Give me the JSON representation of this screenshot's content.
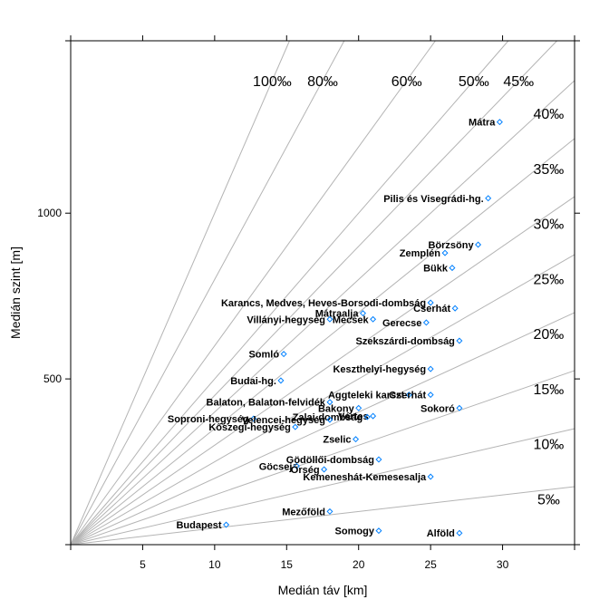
{
  "chart_data": {
    "type": "scatter",
    "xlabel": "Medián táv [km]",
    "ylabel": "Medián szint [m]",
    "xlim": [
      0,
      35
    ],
    "ylim": [
      0,
      1520
    ],
    "x_ticks": [
      "5",
      "10",
      "15",
      "20",
      "25",
      "30"
    ],
    "x_tick_values": [
      5,
      10,
      15,
      20,
      25,
      30
    ],
    "y_ticks": [
      "500",
      "1000"
    ],
    "y_tick_values": [
      500,
      1000
    ],
    "grid": false,
    "slope_lines": [
      {
        "label": "100‰",
        "permille": 100
      },
      {
        "label": "80‰",
        "permille": 80
      },
      {
        "label": "60‰",
        "permille": 60
      },
      {
        "label": "50‰",
        "permille": 50
      },
      {
        "label": "45‰",
        "permille": 45
      },
      {
        "label": "40‰",
        "permille": 40
      },
      {
        "label": "35‰",
        "permille": 35
      },
      {
        "label": "30‰",
        "permille": 30
      },
      {
        "label": "25‰",
        "permille": 25
      },
      {
        "label": "20‰",
        "permille": 20
      },
      {
        "label": "15‰",
        "permille": 15
      },
      {
        "label": "10‰",
        "permille": 10
      },
      {
        "label": "5‰",
        "permille": 5
      }
    ],
    "points": [
      {
        "label": "Mátra",
        "x": 29.8,
        "y": 1275
      },
      {
        "label": "Pilis és Visegrádi-hg.",
        "x": 29.0,
        "y": 1045
      },
      {
        "label": "Börzsöny",
        "x": 28.3,
        "y": 905
      },
      {
        "label": "Zemplén",
        "x": 26.0,
        "y": 880
      },
      {
        "label": "Bükk",
        "x": 26.5,
        "y": 835
      },
      {
        "label": "Karancs, Medves, Heves-Borsodi-dombság",
        "x": 25.0,
        "y": 730
      },
      {
        "label": "Cserhát",
        "x": 26.7,
        "y": 713
      },
      {
        "label": "Mátraalja",
        "x": 20.3,
        "y": 698
      },
      {
        "label": "Mecsek",
        "x": 21.0,
        "y": 680
      },
      {
        "label": "Villányi-hegység",
        "x": 18.0,
        "y": 680
      },
      {
        "label": "Gerecse",
        "x": 24.7,
        "y": 670
      },
      {
        "label": "Szekszárdi-dombság",
        "x": 27.0,
        "y": 615
      },
      {
        "label": "Somló",
        "x": 14.8,
        "y": 575
      },
      {
        "label": "Keszthelyi-hegység",
        "x": 25.0,
        "y": 530
      },
      {
        "label": "Budai-hg.",
        "x": 14.6,
        "y": 495
      },
      {
        "label": "Aggteleki karszt",
        "x": 23.5,
        "y": 452
      },
      {
        "label": "Cserhát",
        "x": 25.0,
        "y": 452
      },
      {
        "label": "Balaton, Balaton-felvidék",
        "x": 18.0,
        "y": 430
      },
      {
        "label": "Bakony",
        "x": 20.0,
        "y": 412
      },
      {
        "label": "Sokoró",
        "x": 27.0,
        "y": 412
      },
      {
        "label": "Vértes",
        "x": 21.0,
        "y": 388
      },
      {
        "label": "Zalai-dombság",
        "x": 20.6,
        "y": 385
      },
      {
        "label": "Soproni-hegység",
        "x": 12.7,
        "y": 380
      },
      {
        "label": "Velencei-hegység",
        "x": 18.0,
        "y": 377
      },
      {
        "label": "Kőszegi-hegység",
        "x": 15.6,
        "y": 355
      },
      {
        "label": "Zselic",
        "x": 19.8,
        "y": 318
      },
      {
        "label": "Gödöllői-dombság",
        "x": 21.4,
        "y": 257
      },
      {
        "label": "Göcsej",
        "x": 15.7,
        "y": 237
      },
      {
        "label": "Őrség",
        "x": 17.6,
        "y": 227
      },
      {
        "label": "Kemeneshát-Kemesesalja",
        "x": 25.0,
        "y": 205
      },
      {
        "label": "Mezőföld",
        "x": 18.0,
        "y": 100
      },
      {
        "label": "Budapest",
        "x": 10.8,
        "y": 60
      },
      {
        "label": "Somogy",
        "x": 21.4,
        "y": 42
      },
      {
        "label": "Alföld",
        "x": 27.0,
        "y": 35
      }
    ]
  }
}
